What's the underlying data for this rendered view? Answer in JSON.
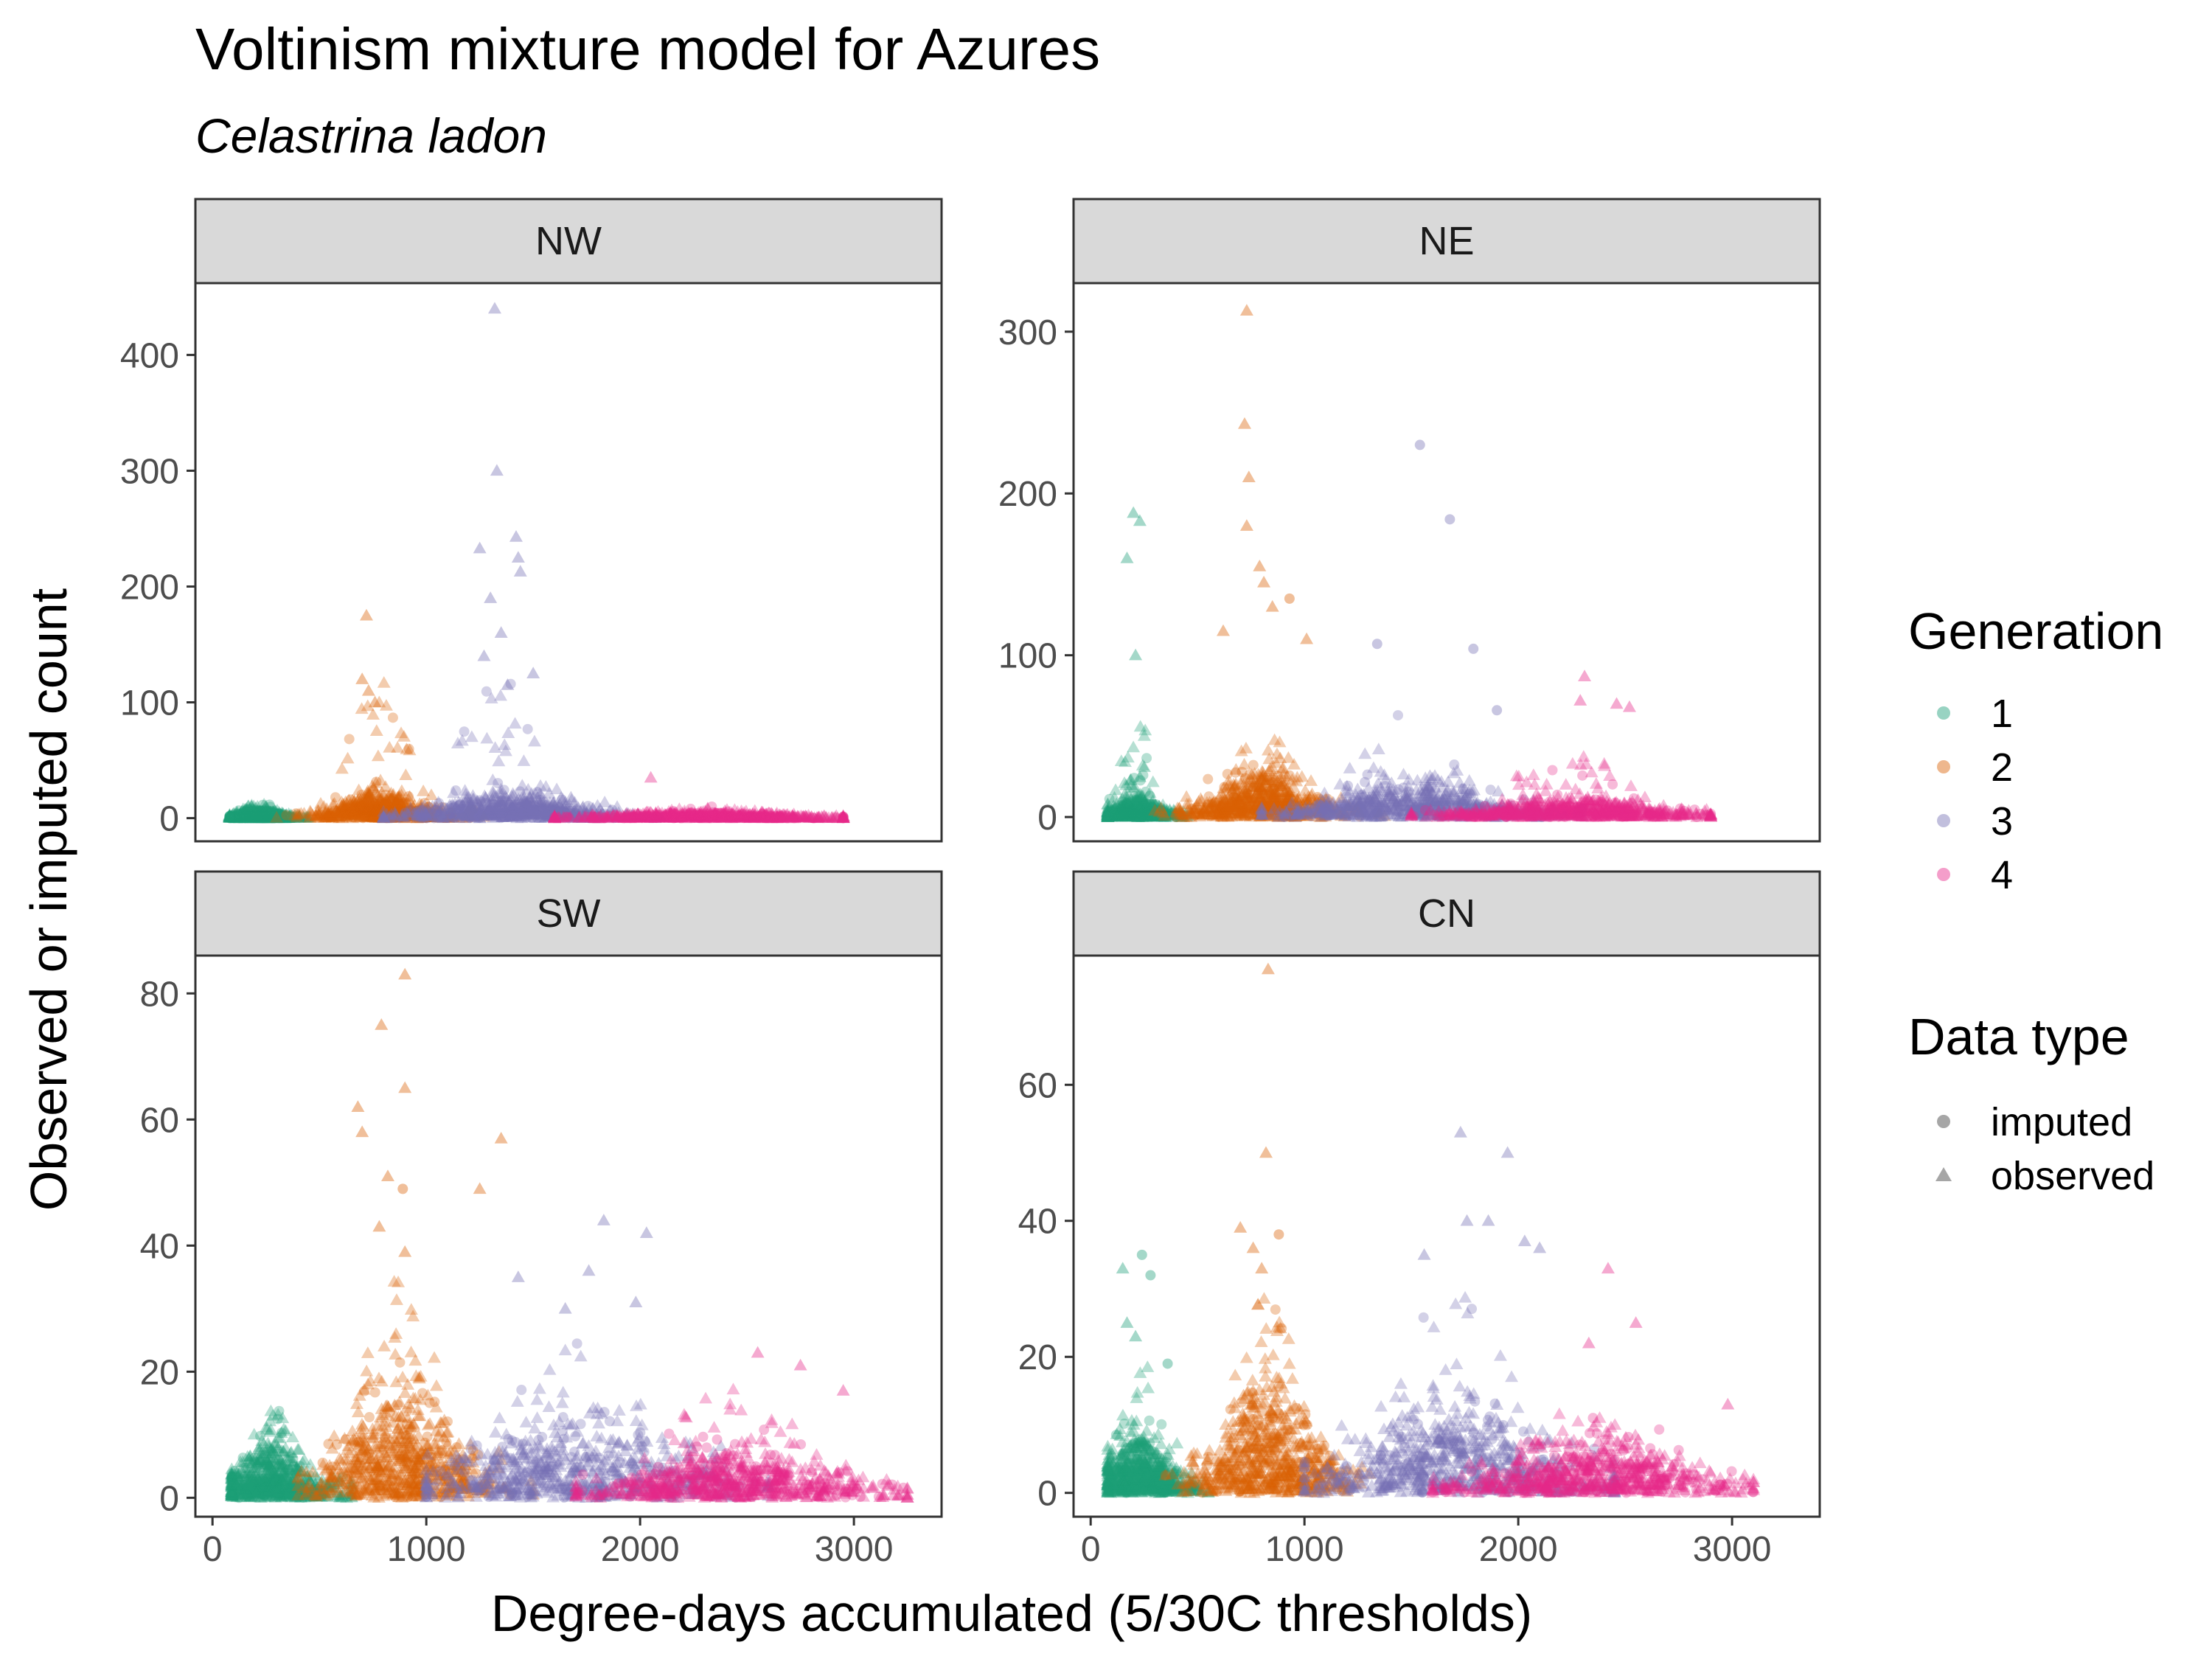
{
  "chart_data": {
    "type": "scatter",
    "title": "Voltinism mixture model for Azures",
    "subtitle": "Celastrina ladon",
    "xlabel": "Degree-days accumulated (5/30C thresholds)",
    "ylabel": "Observed or imputed count",
    "grid": false,
    "legend_position": "right",
    "x_ticks": [
      0,
      1000,
      2000,
      3000
    ],
    "colors": {
      "gen1": "#1b9e77",
      "gen2": "#d95f02",
      "gen3": "#7570b3",
      "gen4": "#e7298a",
      "strip_bg": "#d9d9d9",
      "legend_shape": "#a6a6a6"
    },
    "legends": {
      "generation": {
        "title": "Generation",
        "entries": [
          {
            "label": "1",
            "key": "gen1"
          },
          {
            "label": "2",
            "key": "gen2"
          },
          {
            "label": "3",
            "key": "gen3"
          },
          {
            "label": "4",
            "key": "gen4"
          }
        ]
      },
      "data_type": {
        "title": "Data type",
        "entries": [
          {
            "label": "imputed",
            "shape": "circle"
          },
          {
            "label": "observed",
            "shape": "triangle"
          }
        ]
      }
    },
    "panels": [
      {
        "name": "NW",
        "xlim": [
          -80,
          3410
        ],
        "ylim": [
          -20,
          462
        ],
        "y_ticks": [
          0,
          100,
          200,
          300,
          400
        ],
        "generations": [
          {
            "gen": 1,
            "center_x": 220,
            "spread_x": 80,
            "xrange": [
              80,
              450
            ],
            "typical_y": 3,
            "max_y": 14
          },
          {
            "gen": 2,
            "center_x": 780,
            "spread_x": 160,
            "xrange": [
              300,
              1300
            ],
            "typical_y": 8,
            "max_y": 120
          },
          {
            "gen": 3,
            "center_x": 1400,
            "spread_x": 260,
            "xrange": [
              800,
              2200
            ],
            "typical_y": 8,
            "max_y": 130
          },
          {
            "gen": 4,
            "center_x": 2300,
            "spread_x": 320,
            "xrange": [
              1600,
              2950
            ],
            "typical_y": 2,
            "max_y": 10
          }
        ],
        "highlights": [
          {
            "gen": 2,
            "x": 720,
            "y": 175,
            "type": "observed"
          },
          {
            "gen": 2,
            "x": 700,
            "y": 120,
            "type": "observed"
          },
          {
            "gen": 2,
            "x": 730,
            "y": 110,
            "type": "observed"
          },
          {
            "gen": 2,
            "x": 760,
            "y": 100,
            "type": "observed"
          },
          {
            "gen": 3,
            "x": 1320,
            "y": 440,
            "type": "observed"
          },
          {
            "gen": 3,
            "x": 1330,
            "y": 300,
            "type": "observed"
          },
          {
            "gen": 3,
            "x": 1420,
            "y": 243,
            "type": "observed"
          },
          {
            "gen": 3,
            "x": 1250,
            "y": 233,
            "type": "observed"
          },
          {
            "gen": 3,
            "x": 1430,
            "y": 225,
            "type": "observed"
          },
          {
            "gen": 3,
            "x": 1440,
            "y": 213,
            "type": "observed"
          },
          {
            "gen": 3,
            "x": 1300,
            "y": 190,
            "type": "observed"
          },
          {
            "gen": 3,
            "x": 1350,
            "y": 160,
            "type": "observed"
          },
          {
            "gen": 3,
            "x": 1270,
            "y": 140,
            "type": "observed"
          },
          {
            "gen": 3,
            "x": 1500,
            "y": 125,
            "type": "observed"
          },
          {
            "gen": 3,
            "x": 1380,
            "y": 115,
            "type": "observed"
          },
          {
            "gen": 4,
            "x": 2050,
            "y": 35,
            "type": "observed"
          }
        ]
      },
      {
        "name": "NE",
        "xlim": [
          -80,
          3410
        ],
        "ylim": [
          -15,
          330
        ],
        "y_ticks": [
          0,
          100,
          200,
          300
        ],
        "generations": [
          {
            "gen": 1,
            "center_x": 220,
            "spread_x": 90,
            "xrange": [
              80,
              500
            ],
            "typical_y": 4,
            "max_y": 60
          },
          {
            "gen": 2,
            "center_x": 800,
            "spread_x": 180,
            "xrange": [
              300,
              1400
            ],
            "typical_y": 10,
            "max_y": 60
          },
          {
            "gen": 3,
            "center_x": 1500,
            "spread_x": 300,
            "xrange": [
              800,
              2300
            ],
            "typical_y": 8,
            "max_y": 70
          },
          {
            "gen": 4,
            "center_x": 2250,
            "spread_x": 320,
            "xrange": [
              1500,
              2900
            ],
            "typical_y": 4,
            "max_y": 40
          }
        ],
        "highlights": [
          {
            "gen": 1,
            "x": 200,
            "y": 188,
            "type": "observed"
          },
          {
            "gen": 1,
            "x": 230,
            "y": 183,
            "type": "observed"
          },
          {
            "gen": 1,
            "x": 170,
            "y": 160,
            "type": "observed"
          },
          {
            "gen": 1,
            "x": 210,
            "y": 100,
            "type": "observed"
          },
          {
            "gen": 2,
            "x": 730,
            "y": 313,
            "type": "observed"
          },
          {
            "gen": 2,
            "x": 720,
            "y": 243,
            "type": "observed"
          },
          {
            "gen": 2,
            "x": 740,
            "y": 210,
            "type": "observed"
          },
          {
            "gen": 2,
            "x": 730,
            "y": 180,
            "type": "observed"
          },
          {
            "gen": 2,
            "x": 790,
            "y": 155,
            "type": "observed"
          },
          {
            "gen": 2,
            "x": 810,
            "y": 145,
            "type": "observed"
          },
          {
            "gen": 2,
            "x": 930,
            "y": 135,
            "type": "imputed"
          },
          {
            "gen": 2,
            "x": 850,
            "y": 130,
            "type": "observed"
          },
          {
            "gen": 2,
            "x": 620,
            "y": 115,
            "type": "observed"
          },
          {
            "gen": 2,
            "x": 1010,
            "y": 110,
            "type": "observed"
          },
          {
            "gen": 3,
            "x": 1540,
            "y": 230,
            "type": "imputed"
          },
          {
            "gen": 3,
            "x": 1680,
            "y": 184,
            "type": "imputed"
          },
          {
            "gen": 3,
            "x": 1340,
            "y": 107,
            "type": "imputed"
          },
          {
            "gen": 3,
            "x": 1790,
            "y": 104,
            "type": "imputed"
          },
          {
            "gen": 3,
            "x": 1900,
            "y": 66,
            "type": "imputed"
          },
          {
            "gen": 4,
            "x": 2310,
            "y": 87,
            "type": "observed"
          },
          {
            "gen": 4,
            "x": 2290,
            "y": 72,
            "type": "observed"
          },
          {
            "gen": 4,
            "x": 2460,
            "y": 70,
            "type": "observed"
          },
          {
            "gen": 4,
            "x": 2520,
            "y": 68,
            "type": "observed"
          }
        ]
      },
      {
        "name": "SW",
        "xlim": [
          -80,
          3410
        ],
        "ylim": [
          -3,
          86
        ],
        "y_ticks": [
          0,
          20,
          40,
          60,
          80
        ],
        "generations": [
          {
            "gen": 1,
            "center_x": 280,
            "spread_x": 140,
            "xrange": [
              90,
              650
            ],
            "typical_y": 3,
            "max_y": 15
          },
          {
            "gen": 2,
            "center_x": 880,
            "spread_x": 200,
            "xrange": [
              400,
              1500
            ],
            "typical_y": 7,
            "max_y": 35
          },
          {
            "gen": 3,
            "center_x": 1700,
            "spread_x": 380,
            "xrange": [
              1000,
              2600
            ],
            "typical_y": 5,
            "max_y": 25
          },
          {
            "gen": 4,
            "center_x": 2450,
            "spread_x": 360,
            "xrange": [
              1700,
              3250
            ],
            "typical_y": 3,
            "max_y": 18
          }
        ],
        "highlights": [
          {
            "gen": 2,
            "x": 900,
            "y": 83,
            "type": "observed"
          },
          {
            "gen": 2,
            "x": 790,
            "y": 75,
            "type": "observed"
          },
          {
            "gen": 2,
            "x": 900,
            "y": 65,
            "type": "observed"
          },
          {
            "gen": 2,
            "x": 680,
            "y": 62,
            "type": "observed"
          },
          {
            "gen": 2,
            "x": 700,
            "y": 58,
            "type": "observed"
          },
          {
            "gen": 2,
            "x": 1350,
            "y": 57,
            "type": "observed"
          },
          {
            "gen": 2,
            "x": 820,
            "y": 51,
            "type": "observed"
          },
          {
            "gen": 2,
            "x": 890,
            "y": 49,
            "type": "imputed"
          },
          {
            "gen": 2,
            "x": 1250,
            "y": 49,
            "type": "observed"
          },
          {
            "gen": 2,
            "x": 780,
            "y": 43,
            "type": "observed"
          },
          {
            "gen": 2,
            "x": 900,
            "y": 39,
            "type": "observed"
          },
          {
            "gen": 3,
            "x": 1830,
            "y": 44,
            "type": "observed"
          },
          {
            "gen": 3,
            "x": 2030,
            "y": 42,
            "type": "observed"
          },
          {
            "gen": 3,
            "x": 1760,
            "y": 36,
            "type": "observed"
          },
          {
            "gen": 3,
            "x": 1430,
            "y": 35,
            "type": "observed"
          },
          {
            "gen": 3,
            "x": 1650,
            "y": 30,
            "type": "observed"
          },
          {
            "gen": 3,
            "x": 1980,
            "y": 31,
            "type": "observed"
          },
          {
            "gen": 4,
            "x": 2550,
            "y": 23,
            "type": "observed"
          },
          {
            "gen": 4,
            "x": 2750,
            "y": 21,
            "type": "observed"
          },
          {
            "gen": 4,
            "x": 2950,
            "y": 17,
            "type": "observed"
          }
        ]
      },
      {
        "name": "CN",
        "xlim": [
          -80,
          3410
        ],
        "ylim": [
          -3.5,
          79
        ],
        "y_ticks": [
          20,
          40,
          60,
          0
        ],
        "generations": [
          {
            "gen": 1,
            "center_x": 230,
            "spread_x": 110,
            "xrange": [
              80,
              550
            ],
            "typical_y": 3,
            "max_y": 20
          },
          {
            "gen": 2,
            "center_x": 830,
            "spread_x": 180,
            "xrange": [
              350,
              1450
            ],
            "typical_y": 6,
            "max_y": 30
          },
          {
            "gen": 3,
            "center_x": 1700,
            "spread_x": 330,
            "xrange": [
              1000,
              2450
            ],
            "typical_y": 5,
            "max_y": 30
          },
          {
            "gen": 4,
            "center_x": 2350,
            "spread_x": 340,
            "xrange": [
              1600,
              3100
            ],
            "typical_y": 3,
            "max_y": 15
          }
        ],
        "highlights": [
          {
            "gen": 1,
            "x": 240,
            "y": 35,
            "type": "imputed"
          },
          {
            "gen": 1,
            "x": 150,
            "y": 33,
            "type": "observed"
          },
          {
            "gen": 1,
            "x": 280,
            "y": 32,
            "type": "imputed"
          },
          {
            "gen": 1,
            "x": 170,
            "y": 25,
            "type": "observed"
          },
          {
            "gen": 1,
            "x": 210,
            "y": 23,
            "type": "observed"
          },
          {
            "gen": 1,
            "x": 360,
            "y": 19,
            "type": "imputed"
          },
          {
            "gen": 2,
            "x": 830,
            "y": 77,
            "type": "observed"
          },
          {
            "gen": 2,
            "x": 820,
            "y": 50,
            "type": "observed"
          },
          {
            "gen": 2,
            "x": 700,
            "y": 39,
            "type": "observed"
          },
          {
            "gen": 2,
            "x": 880,
            "y": 38,
            "type": "imputed"
          },
          {
            "gen": 2,
            "x": 760,
            "y": 36,
            "type": "observed"
          },
          {
            "gen": 2,
            "x": 800,
            "y": 33,
            "type": "observed"
          },
          {
            "gen": 3,
            "x": 1730,
            "y": 53,
            "type": "observed"
          },
          {
            "gen": 3,
            "x": 1950,
            "y": 50,
            "type": "observed"
          },
          {
            "gen": 3,
            "x": 1760,
            "y": 40,
            "type": "observed"
          },
          {
            "gen": 3,
            "x": 1860,
            "y": 40,
            "type": "observed"
          },
          {
            "gen": 3,
            "x": 2030,
            "y": 37,
            "type": "observed"
          },
          {
            "gen": 3,
            "x": 1560,
            "y": 35,
            "type": "observed"
          },
          {
            "gen": 3,
            "x": 2100,
            "y": 36,
            "type": "observed"
          },
          {
            "gen": 4,
            "x": 2420,
            "y": 33,
            "type": "observed"
          },
          {
            "gen": 4,
            "x": 2550,
            "y": 25,
            "type": "observed"
          },
          {
            "gen": 4,
            "x": 2330,
            "y": 22,
            "type": "observed"
          },
          {
            "gen": 4,
            "x": 2980,
            "y": 13,
            "type": "observed"
          }
        ]
      }
    ]
  }
}
